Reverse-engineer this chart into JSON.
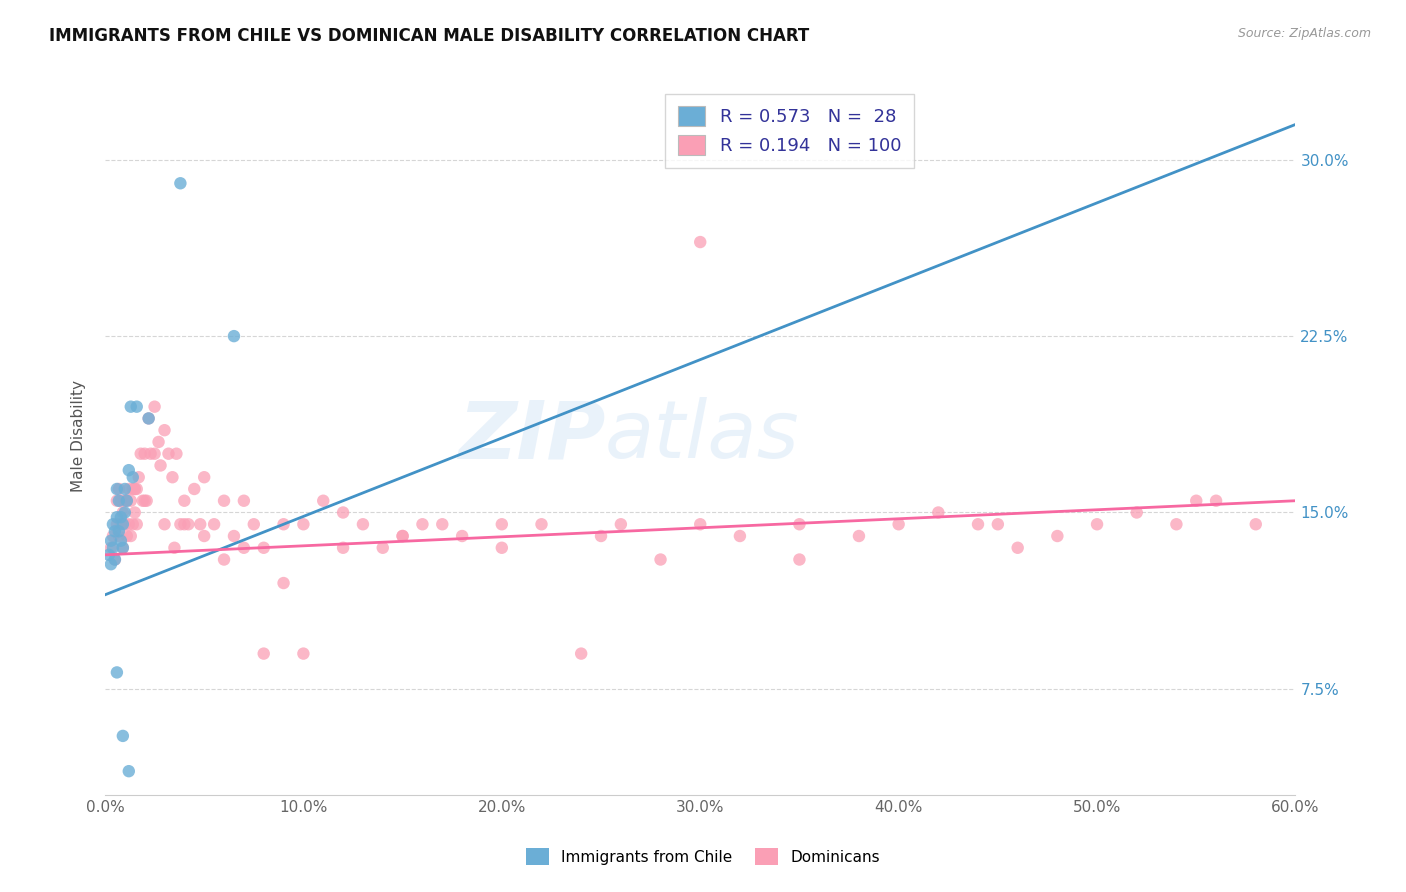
{
  "title": "IMMIGRANTS FROM CHILE VS DOMINICAN MALE DISABILITY CORRELATION CHART",
  "source": "Source: ZipAtlas.com",
  "ylabel": "Male Disability",
  "yticks": [
    "7.5%",
    "15.0%",
    "22.5%",
    "30.0%"
  ],
  "ytick_vals": [
    0.075,
    0.15,
    0.225,
    0.3
  ],
  "xrange": [
    0.0,
    0.6
  ],
  "yrange": [
    0.03,
    0.335
  ],
  "color_chile": "#6baed6",
  "color_dominican": "#fa9fb5",
  "color_line_chile": "#4292c6",
  "color_line_dominican": "#f768a1",
  "watermark": "ZIPatlas",
  "chile_line_x0": 0.0,
  "chile_line_y0": 0.115,
  "chile_line_x1": 0.6,
  "chile_line_y1": 0.315,
  "dominican_line_x0": 0.0,
  "dominican_line_y0": 0.132,
  "dominican_line_x1": 0.6,
  "dominican_line_y1": 0.155,
  "chile_x": [
    0.002,
    0.003,
    0.003,
    0.004,
    0.004,
    0.005,
    0.005,
    0.006,
    0.006,
    0.007,
    0.007,
    0.008,
    0.008,
    0.009,
    0.009,
    0.01,
    0.01,
    0.011,
    0.012,
    0.013,
    0.014,
    0.016,
    0.022,
    0.038,
    0.006,
    0.009,
    0.012,
    0.065
  ],
  "chile_y": [
    0.132,
    0.128,
    0.138,
    0.135,
    0.145,
    0.13,
    0.142,
    0.148,
    0.16,
    0.142,
    0.155,
    0.138,
    0.148,
    0.135,
    0.145,
    0.15,
    0.16,
    0.155,
    0.168,
    0.195,
    0.165,
    0.195,
    0.19,
    0.29,
    0.082,
    0.055,
    0.04,
    0.225
  ],
  "dom_x": [
    0.003,
    0.004,
    0.005,
    0.006,
    0.006,
    0.007,
    0.007,
    0.008,
    0.008,
    0.009,
    0.009,
    0.01,
    0.01,
    0.011,
    0.011,
    0.012,
    0.012,
    0.013,
    0.013,
    0.014,
    0.014,
    0.015,
    0.015,
    0.016,
    0.016,
    0.017,
    0.018,
    0.019,
    0.02,
    0.021,
    0.022,
    0.023,
    0.025,
    0.027,
    0.028,
    0.03,
    0.032,
    0.034,
    0.036,
    0.038,
    0.04,
    0.042,
    0.045,
    0.048,
    0.05,
    0.055,
    0.06,
    0.065,
    0.07,
    0.075,
    0.08,
    0.09,
    0.1,
    0.11,
    0.12,
    0.13,
    0.14,
    0.15,
    0.16,
    0.18,
    0.2,
    0.22,
    0.24,
    0.26,
    0.28,
    0.3,
    0.32,
    0.35,
    0.38,
    0.4,
    0.42,
    0.44,
    0.46,
    0.48,
    0.5,
    0.52,
    0.54,
    0.56,
    0.58,
    0.025,
    0.015,
    0.02,
    0.03,
    0.035,
    0.04,
    0.05,
    0.06,
    0.08,
    0.1,
    0.15,
    0.2,
    0.25,
    0.35,
    0.45,
    0.55,
    0.07,
    0.09,
    0.12,
    0.17,
    0.3
  ],
  "dom_y": [
    0.135,
    0.14,
    0.13,
    0.145,
    0.155,
    0.14,
    0.16,
    0.145,
    0.155,
    0.135,
    0.15,
    0.145,
    0.155,
    0.14,
    0.155,
    0.145,
    0.16,
    0.14,
    0.155,
    0.145,
    0.16,
    0.15,
    0.16,
    0.145,
    0.16,
    0.165,
    0.175,
    0.155,
    0.175,
    0.155,
    0.19,
    0.175,
    0.195,
    0.18,
    0.17,
    0.185,
    0.175,
    0.165,
    0.175,
    0.145,
    0.155,
    0.145,
    0.16,
    0.145,
    0.165,
    0.145,
    0.155,
    0.14,
    0.155,
    0.145,
    0.09,
    0.145,
    0.145,
    0.155,
    0.15,
    0.145,
    0.135,
    0.14,
    0.145,
    0.14,
    0.135,
    0.145,
    0.09,
    0.145,
    0.13,
    0.145,
    0.14,
    0.145,
    0.14,
    0.145,
    0.15,
    0.145,
    0.135,
    0.14,
    0.145,
    0.15,
    0.145,
    0.155,
    0.145,
    0.175,
    0.16,
    0.155,
    0.145,
    0.135,
    0.145,
    0.14,
    0.13,
    0.135,
    0.09,
    0.14,
    0.145,
    0.14,
    0.13,
    0.145,
    0.155,
    0.135,
    0.12,
    0.135,
    0.145,
    0.265
  ]
}
